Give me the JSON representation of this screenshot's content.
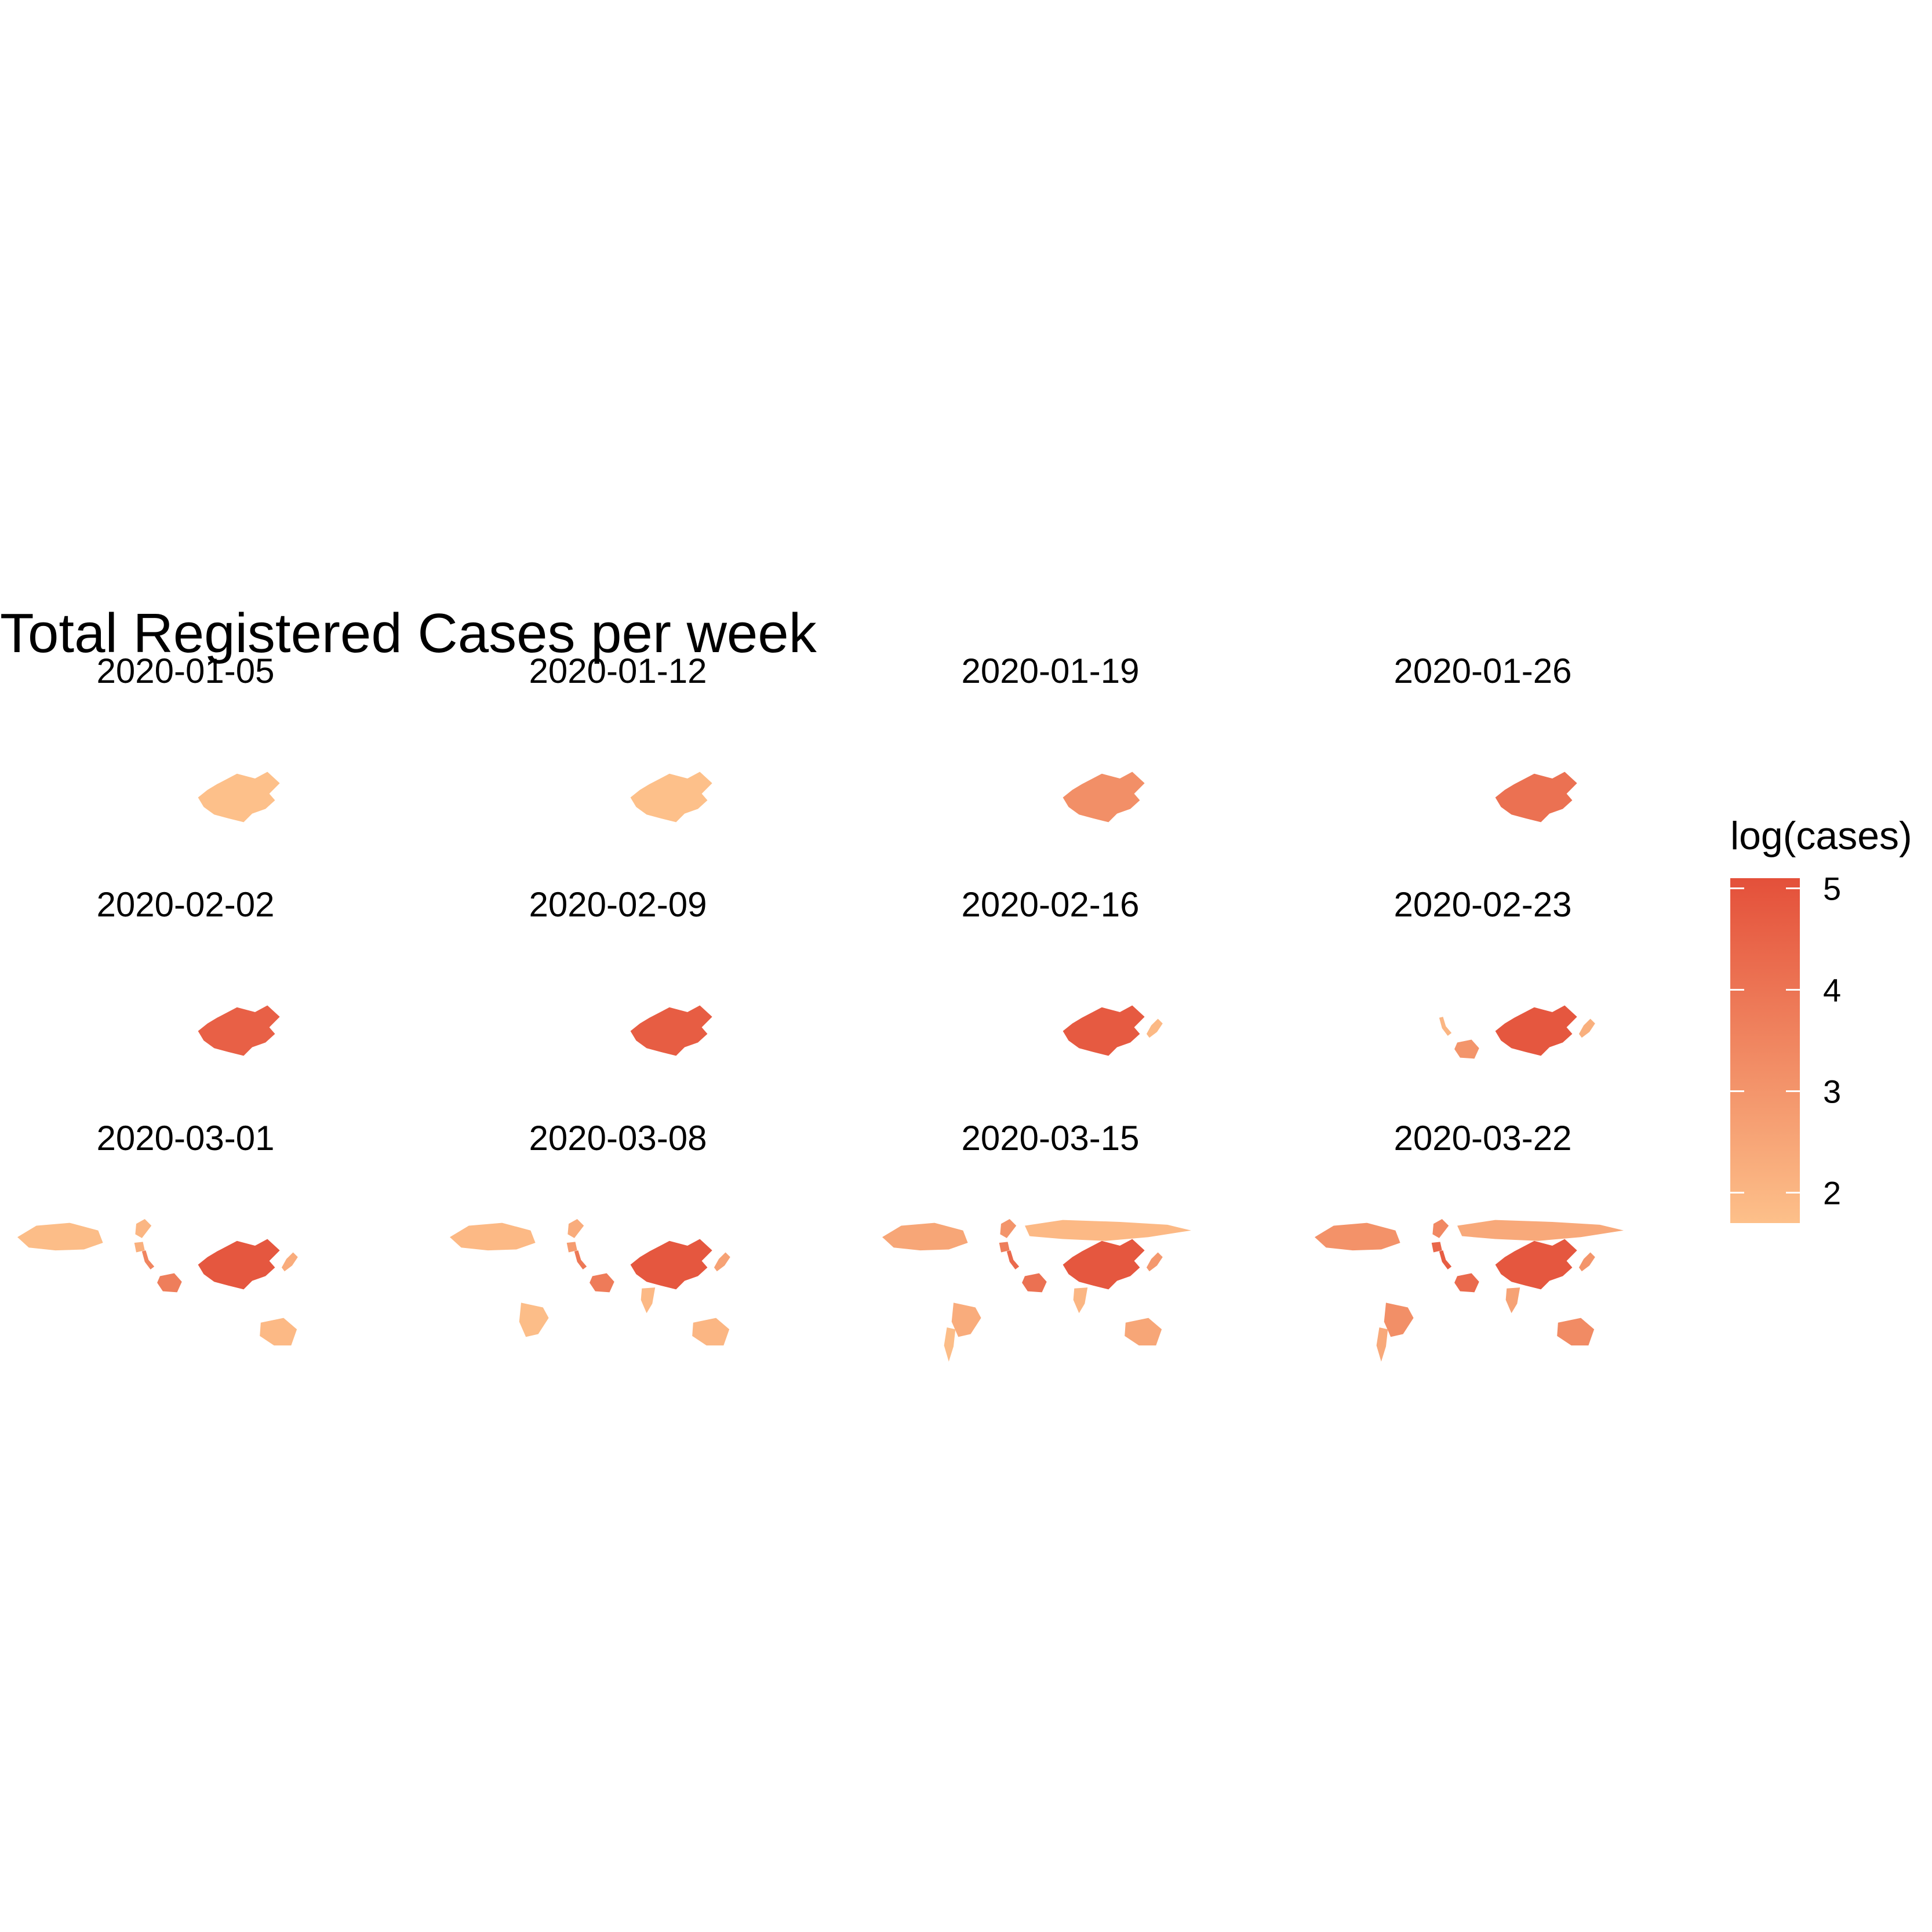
{
  "chart_data": {
    "type": "choropleth-map-facets",
    "title": "Total Registered Cases per week",
    "legend": {
      "title": "log(cases)",
      "placement": "right",
      "ticks": [
        2,
        3,
        4,
        5
      ],
      "range": [
        1.7,
        5.1
      ],
      "color_low": "#fdc08a",
      "color_high": "#e4503a"
    },
    "facets": [
      {
        "label": "2020-01-05",
        "regions": [
          {
            "name": "China",
            "value": 1.7
          }
        ]
      },
      {
        "label": "2020-01-12",
        "regions": [
          {
            "name": "China",
            "value": 1.7
          }
        ]
      },
      {
        "label": "2020-01-19",
        "regions": [
          {
            "name": "China",
            "value": 3.2
          }
        ]
      },
      {
        "label": "2020-01-26",
        "regions": [
          {
            "name": "China",
            "value": 4.1
          }
        ]
      },
      {
        "label": "2020-02-02",
        "regions": [
          {
            "name": "China",
            "value": 4.6
          }
        ]
      },
      {
        "label": "2020-02-09",
        "regions": [
          {
            "name": "China",
            "value": 4.7
          }
        ]
      },
      {
        "label": "2020-02-16",
        "regions": [
          {
            "name": "China",
            "value": 4.8
          },
          {
            "name": "Japan",
            "value": 1.9
          }
        ]
      },
      {
        "label": "2020-02-23",
        "regions": [
          {
            "name": "China",
            "value": 4.9
          },
          {
            "name": "Japan",
            "value": 2.2
          },
          {
            "name": "Italy",
            "value": 2.0
          },
          {
            "name": "Iran",
            "value": 3.0
          }
        ]
      },
      {
        "label": "2020-03-01",
        "regions": [
          {
            "name": "China",
            "value": 4.9
          },
          {
            "name": "Japan",
            "value": 2.3
          },
          {
            "name": "Italy",
            "value": 3.5
          },
          {
            "name": "Iran",
            "value": 3.7
          },
          {
            "name": "Canada",
            "value": 1.8
          },
          {
            "name": "Australia",
            "value": 1.9
          },
          {
            "name": "Germany",
            "value": 2.2
          },
          {
            "name": "Norway",
            "value": 2.0
          }
        ]
      },
      {
        "label": "2020-03-08",
        "regions": [
          {
            "name": "China",
            "value": 4.9
          },
          {
            "name": "Japan",
            "value": 2.6
          },
          {
            "name": "Italy",
            "value": 3.9
          },
          {
            "name": "Iran",
            "value": 3.8
          },
          {
            "name": "Canada",
            "value": 1.9
          },
          {
            "name": "Australia",
            "value": 2.0
          },
          {
            "name": "Germany",
            "value": 2.8
          },
          {
            "name": "Norway",
            "value": 2.3
          },
          {
            "name": "Brazil",
            "value": 1.8
          },
          {
            "name": "India",
            "value": 1.9
          }
        ]
      },
      {
        "label": "2020-03-15",
        "regions": [
          {
            "name": "China",
            "value": 4.9
          },
          {
            "name": "Japan",
            "value": 2.9
          },
          {
            "name": "Italy",
            "value": 4.3
          },
          {
            "name": "Iran",
            "value": 4.1
          },
          {
            "name": "Canada",
            "value": 2.5
          },
          {
            "name": "Australia",
            "value": 2.5
          },
          {
            "name": "Germany",
            "value": 3.7
          },
          {
            "name": "Norway",
            "value": 3.0
          },
          {
            "name": "Brazil",
            "value": 2.3
          },
          {
            "name": "India",
            "value": 2.0
          },
          {
            "name": "Russia",
            "value": 1.9
          },
          {
            "name": "Argentina",
            "value": 1.8
          }
        ]
      },
      {
        "label": "2020-03-22",
        "regions": [
          {
            "name": "China",
            "value": 4.9
          },
          {
            "name": "Japan",
            "value": 3.0
          },
          {
            "name": "Italy",
            "value": 4.7
          },
          {
            "name": "Iran",
            "value": 4.3
          },
          {
            "name": "Canada",
            "value": 3.1
          },
          {
            "name": "Australia",
            "value": 3.3
          },
          {
            "name": "Germany",
            "value": 4.4
          },
          {
            "name": "Norway",
            "value": 3.4
          },
          {
            "name": "Brazil",
            "value": 3.2
          },
          {
            "name": "India",
            "value": 2.6
          },
          {
            "name": "Russia",
            "value": 2.4
          },
          {
            "name": "Argentina",
            "value": 2.4
          }
        ]
      }
    ]
  }
}
